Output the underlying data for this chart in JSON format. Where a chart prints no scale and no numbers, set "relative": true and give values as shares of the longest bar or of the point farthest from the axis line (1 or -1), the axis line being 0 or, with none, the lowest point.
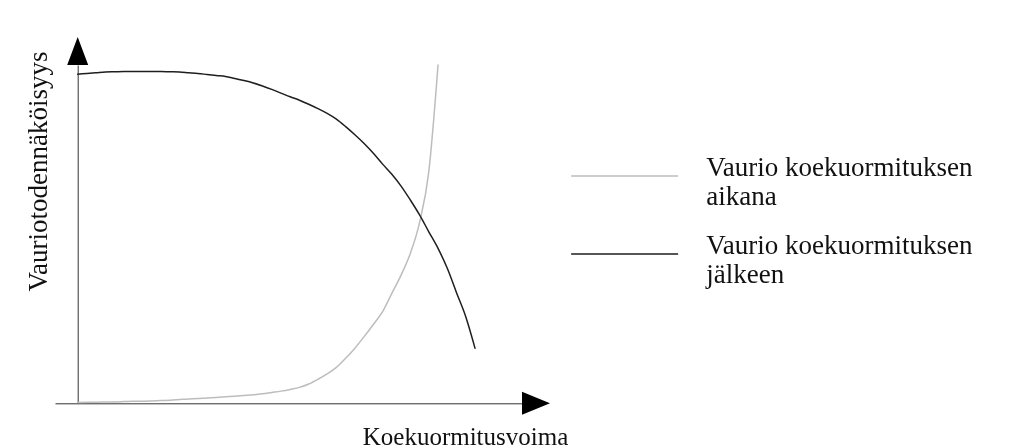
{
  "chart_data": {
    "type": "line",
    "relative": true,
    "xlabel": "Koekuormitusvoima",
    "ylabel": "Vauriotodennäköisyys",
    "legend": "right",
    "categories": [
      null,
      null,
      null,
      null,
      null,
      null,
      null,
      null,
      null,
      null,
      null,
      null,
      null,
      null,
      null,
      null,
      null,
      null,
      null,
      null,
      null,
      null,
      null,
      null,
      null,
      null,
      null,
      null,
      null,
      null,
      null,
      null,
      null,
      null,
      null,
      null,
      null,
      null,
      null,
      null,
      null,
      null,
      null,
      null
    ],
    "series": [
      {
        "name": "Vaurio koekuormituksen aikana",
        "color": "#bdbdbd",
        "values": [
          0.002,
          0.003,
          0.003,
          0.004,
          0.004,
          0.005,
          0.006,
          0.006,
          0.007,
          0.008,
          0.009,
          0.011,
          0.013,
          0.014,
          0.016,
          0.017,
          0.019,
          0.021,
          0.023,
          0.025,
          0.028,
          0.032,
          0.036,
          0.041,
          0.047,
          0.057,
          0.071,
          0.087,
          0.106,
          0.133,
          0.163,
          0.197,
          0.233,
          0.271,
          0.325,
          0.379,
          0.443,
          0.534,
          0.685,
          1,
          null,
          null,
          null,
          null
        ]
      },
      {
        "name": "Vaurio koekuormituksen jälkeen",
        "color": "#1e1e1e",
        "values": [
          0.973,
          0.975,
          0.977,
          0.979,
          0.98,
          0.981,
          0.981,
          0.981,
          0.981,
          0.981,
          0.98,
          0.979,
          0.977,
          0.975,
          0.972,
          0.969,
          0.966,
          0.96,
          0.954,
          0.947,
          0.938,
          0.928,
          0.917,
          0.906,
          0.896,
          0.884,
          0.871,
          0.857,
          0.84,
          0.818,
          0.794,
          0.768,
          0.739,
          0.707,
          0.677,
          0.642,
          0.601,
          0.557,
          0.507,
          0.458,
          0.399,
          0.327,
          0.256,
          0.163
        ]
      }
    ]
  }
}
